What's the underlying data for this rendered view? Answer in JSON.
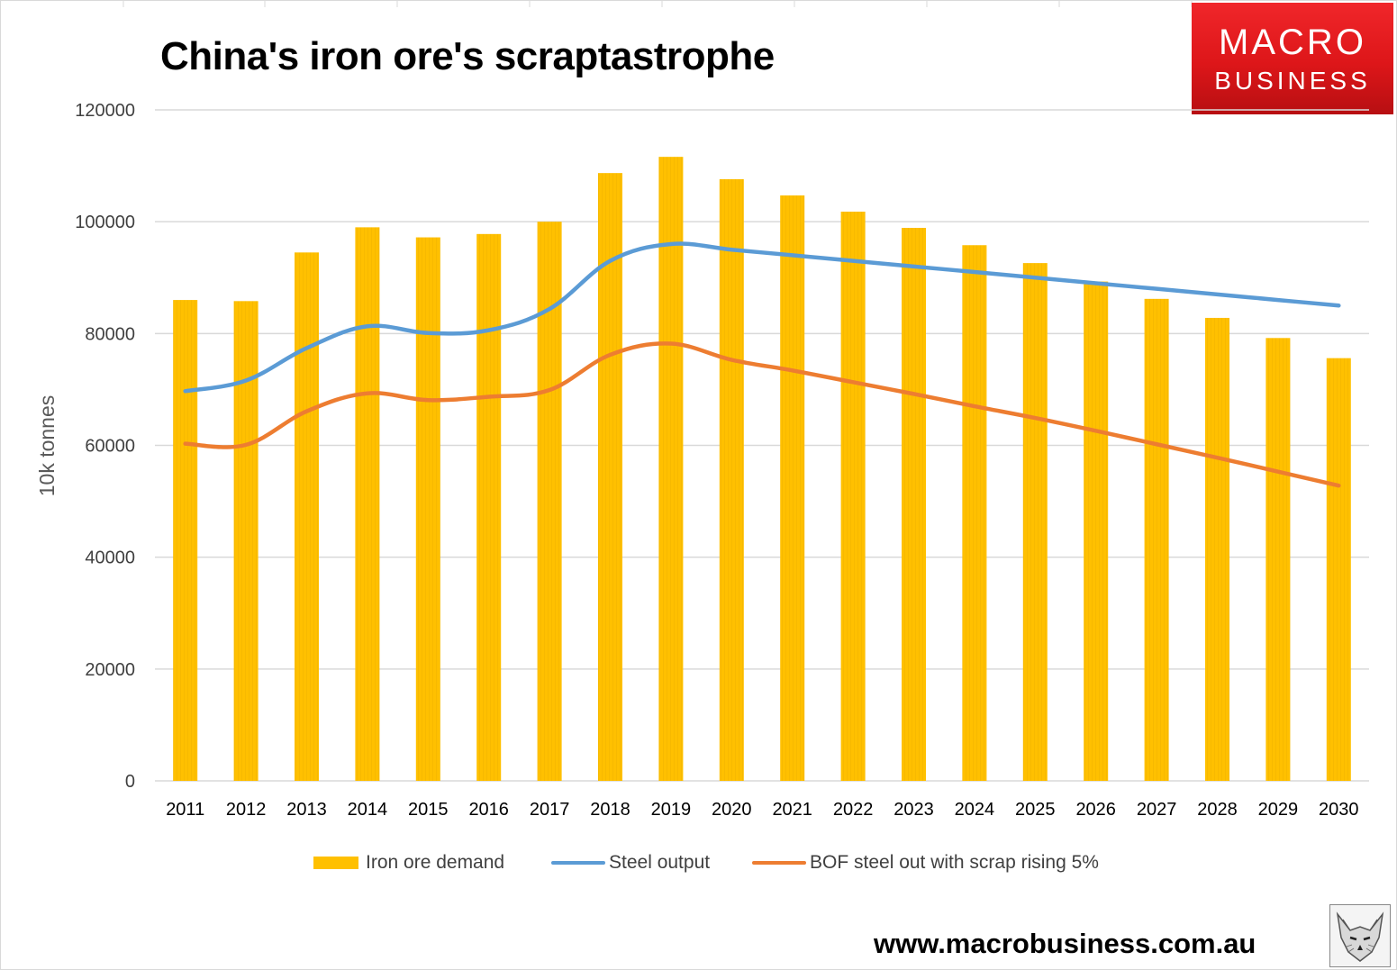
{
  "title": "China's iron ore's scraptastrophe",
  "logo": {
    "line1": "MACRO",
    "line2": "BUSINESS",
    "color": "#e31b1e"
  },
  "website": "www.macrobusiness.com.au",
  "fox_icon": "fox-logo-icon",
  "colors": {
    "bar": "#ffc000",
    "steel_output": "#5b9bd5",
    "bof": "#ed7d31",
    "grid": "#d9d9d9",
    "tick_text": "#404040"
  },
  "chart_data": {
    "type": "bar",
    "title": "China's iron ore's scraptastrophe",
    "xlabel": "",
    "ylabel": "10k tonnes",
    "ylim": [
      0,
      120000
    ],
    "yticks": [
      0,
      20000,
      40000,
      60000,
      80000,
      100000,
      120000
    ],
    "grid": true,
    "legend_position": "bottom",
    "categories": [
      "2011",
      "2012",
      "2013",
      "2014",
      "2015",
      "2016",
      "2017",
      "2018",
      "2019",
      "2020",
      "2021",
      "2022",
      "2023",
      "2024",
      "2025",
      "2026",
      "2027",
      "2028",
      "2029",
      "2030"
    ],
    "series": [
      {
        "name": "Iron ore demand",
        "type": "bar",
        "values": [
          86000,
          85800,
          94500,
          99000,
          97200,
          97800,
          100000,
          108700,
          111600,
          107600,
          104700,
          101800,
          98900,
          95800,
          92600,
          89300,
          86200,
          82800,
          79200,
          75600
        ]
      },
      {
        "name": "Steel output",
        "type": "line",
        "values": [
          69700,
          71600,
          77400,
          81300,
          80100,
          80600,
          84400,
          93000,
          96000,
          95000,
          94000,
          93000,
          92000,
          91000,
          90000,
          89000,
          88000,
          87000,
          86000,
          85000
        ]
      },
      {
        "name": "BOF steel out with scrap rising 5%",
        "type": "line",
        "values": [
          60300,
          60100,
          66100,
          69300,
          68100,
          68700,
          69900,
          76200,
          78200,
          75300,
          73400,
          71300,
          69200,
          67000,
          64900,
          62600,
          60200,
          57800,
          55300,
          52800
        ]
      }
    ]
  }
}
